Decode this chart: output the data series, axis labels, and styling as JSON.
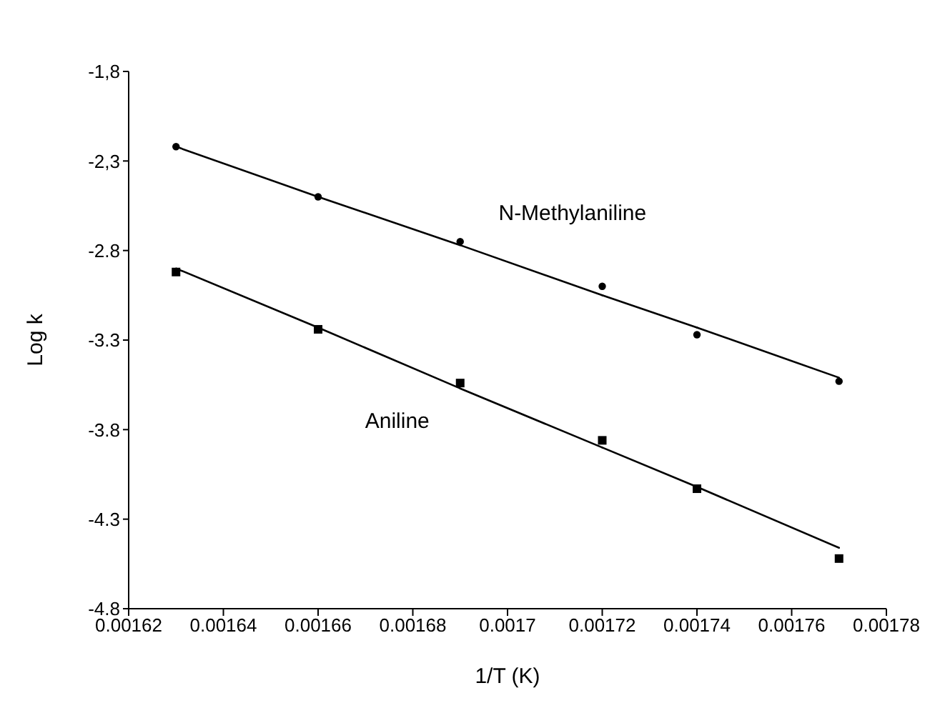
{
  "chart_data": {
    "type": "scatter",
    "xlabel": "1/T (K)",
    "ylabel": "Log k",
    "xlim": [
      0.00162,
      0.00178
    ],
    "xticks": [
      0.00162,
      0.00164,
      0.00166,
      0.00168,
      0.0017,
      0.00172,
      0.00174,
      0.00176,
      0.00178
    ],
    "ylim": [
      -4.8,
      -1.8
    ],
    "yticks": [
      {
        "value": -4.8,
        "label": "-4.8"
      },
      {
        "value": -4.3,
        "label": "-4.3"
      },
      {
        "value": -3.8,
        "label": "-3.8"
      },
      {
        "value": -3.3,
        "label": "-3.3"
      },
      {
        "value": -2.8,
        "label": "-2.8"
      },
      {
        "value": -2.3,
        "label": "-2,3"
      },
      {
        "value": -1.8,
        "label": "-1,8"
      }
    ],
    "grid": false,
    "legend": false,
    "x": [
      0.00163,
      0.00166,
      0.00169,
      0.00172,
      0.00174,
      0.00177
    ],
    "series": [
      {
        "name": "N-Methylaniline",
        "color": "#000000",
        "marker": "circle",
        "values": [
          -2.22,
          -2.5,
          -2.75,
          -3.0,
          -3.27,
          -3.53
        ]
      },
      {
        "name": "Aniline",
        "color": "#000000",
        "marker": "square",
        "values": [
          -2.92,
          -3.24,
          -3.54,
          -3.86,
          -4.13,
          -4.52
        ]
      },
      {
        "type": "line",
        "color": "#000000",
        "marker": "none",
        "values": [
          -2.22,
          -2.5,
          -2.77,
          -3.05,
          -3.23,
          -3.51
        ]
      },
      {
        "type": "line",
        "color": "#000000",
        "marker": "none",
        "values": [
          -2.9,
          -3.23,
          -3.57,
          -3.9,
          -4.12,
          -4.46
        ]
      }
    ]
  }
}
